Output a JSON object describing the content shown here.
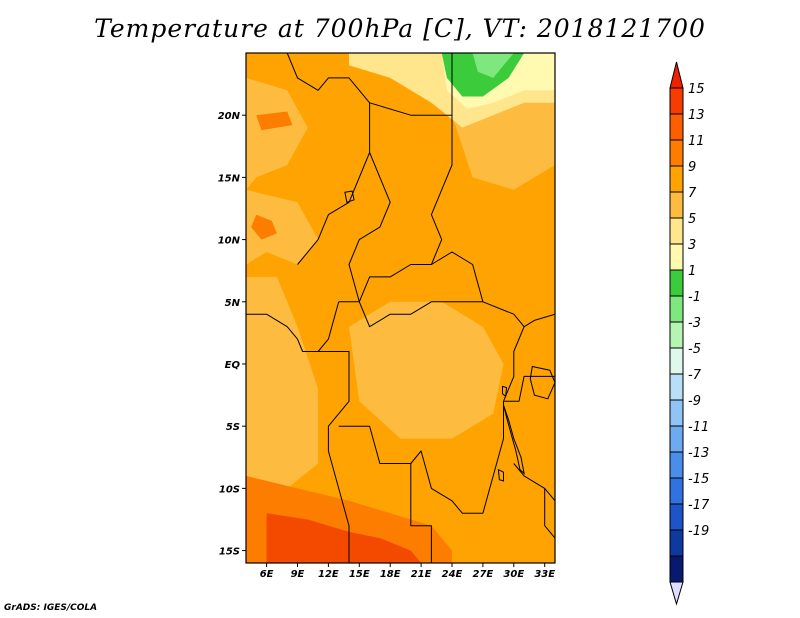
{
  "title": "Temperature at 700hPa [C], VT: 2018121700",
  "credit": "GrADS: IGES/COLA",
  "map": {
    "lon_range": [
      4,
      34
    ],
    "lat_range": [
      -16,
      25
    ],
    "lon_ticks": [
      {
        "value": 6,
        "label": "6E"
      },
      {
        "value": 9,
        "label": "9E"
      },
      {
        "value": 12,
        "label": "12E"
      },
      {
        "value": 15,
        "label": "15E"
      },
      {
        "value": 18,
        "label": "18E"
      },
      {
        "value": 21,
        "label": "21E"
      },
      {
        "value": 24,
        "label": "24E"
      },
      {
        "value": 27,
        "label": "27E"
      },
      {
        "value": 30,
        "label": "30E"
      },
      {
        "value": 33,
        "label": "33E"
      }
    ],
    "lat_ticks": [
      {
        "value": 20,
        "label": "20N"
      },
      {
        "value": 15,
        "label": "15N"
      },
      {
        "value": 10,
        "label": "10N"
      },
      {
        "value": 5,
        "label": "5N"
      },
      {
        "value": 0,
        "label": "EQ"
      },
      {
        "value": -5,
        "label": "5S"
      },
      {
        "value": -10,
        "label": "10S"
      },
      {
        "value": -15,
        "label": "15S"
      }
    ],
    "background_color": "#fea302",
    "regions": [
      {
        "name": "warm-patch-west",
        "level": 7,
        "color": "#fdbc3f",
        "polygon": [
          [
            4,
            23
          ],
          [
            8,
            22
          ],
          [
            10,
            19
          ],
          [
            8,
            16
          ],
          [
            5,
            15
          ],
          [
            4,
            14
          ]
        ]
      },
      {
        "name": "warm-patch-sahel",
        "level": 7,
        "color": "#fdbc3f",
        "polygon": [
          [
            4,
            14
          ],
          [
            9,
            13
          ],
          [
            11,
            10
          ],
          [
            9,
            8
          ],
          [
            6,
            9
          ],
          [
            4,
            8
          ]
        ]
      },
      {
        "name": "warm-patch-west-coast",
        "level": 7,
        "color": "#fdbc3f",
        "polygon": [
          [
            4,
            7
          ],
          [
            7,
            7
          ],
          [
            9,
            3
          ],
          [
            11,
            -2
          ],
          [
            11,
            -8
          ],
          [
            8,
            -10
          ],
          [
            4,
            -10
          ]
        ]
      },
      {
        "name": "warm-patch-congo",
        "level": 7,
        "color": "#fdbc3f",
        "polygon": [
          [
            14,
            3
          ],
          [
            18,
            5
          ],
          [
            23,
            5
          ],
          [
            27,
            3
          ],
          [
            29,
            0
          ],
          [
            28,
            -4
          ],
          [
            24,
            -6
          ],
          [
            19,
            -6
          ],
          [
            15,
            -3
          ]
        ]
      },
      {
        "name": "warm-patch-north",
        "level": 7,
        "color": "#fdbc3f",
        "polygon": [
          [
            24,
            20
          ],
          [
            28,
            22
          ],
          [
            34,
            21
          ],
          [
            34,
            16
          ],
          [
            30,
            14
          ],
          [
            26,
            15
          ]
        ]
      },
      {
        "name": "mild-band-north",
        "level": 5,
        "color": "#ffe58c",
        "polygon": [
          [
            14,
            25
          ],
          [
            34,
            25
          ],
          [
            34,
            21
          ],
          [
            31,
            21
          ],
          [
            28,
            20
          ],
          [
            25,
            19
          ],
          [
            22,
            21
          ],
          [
            18,
            23
          ],
          [
            14,
            24
          ]
        ]
      },
      {
        "name": "cool-band-north",
        "level": 3,
        "color": "#fffab0",
        "polygon": [
          [
            23,
            25
          ],
          [
            34,
            25
          ],
          [
            34,
            22
          ],
          [
            31,
            22
          ],
          [
            28,
            21
          ],
          [
            25.5,
            20.5
          ],
          [
            23.5,
            22
          ]
        ]
      },
      {
        "name": "cold-patch-northeast",
        "level": 1,
        "color": "#3ccb3b",
        "polygon": [
          [
            23,
            25
          ],
          [
            31,
            25
          ],
          [
            29.5,
            23
          ],
          [
            27,
            21.5
          ],
          [
            25,
            21.5
          ],
          [
            23.5,
            23
          ]
        ]
      },
      {
        "name": "colder-patch-northeast",
        "level": -1,
        "color": "#7ee87e",
        "polygon": [
          [
            26,
            25
          ],
          [
            30,
            25
          ],
          [
            28,
            23
          ],
          [
            26.5,
            23.5
          ]
        ]
      },
      {
        "name": "hot-band-south",
        "level": 11,
        "color": "#fd7d00",
        "polygon": [
          [
            4,
            -9
          ],
          [
            9,
            -10
          ],
          [
            14,
            -11
          ],
          [
            18,
            -12
          ],
          [
            22,
            -13
          ],
          [
            24,
            -15
          ],
          [
            24,
            -16
          ],
          [
            4,
            -16
          ]
        ]
      },
      {
        "name": "hotter-band-south",
        "level": 13,
        "color": "#f34a00",
        "polygon": [
          [
            6,
            -12
          ],
          [
            10,
            -12.5
          ],
          [
            14,
            -13.5
          ],
          [
            17,
            -14
          ],
          [
            20,
            -15
          ],
          [
            21,
            -16
          ],
          [
            6,
            -16
          ]
        ]
      },
      {
        "name": "hot-spot-west",
        "level": 11,
        "color": "#fd7d00",
        "polygon": [
          [
            5,
            12
          ],
          [
            6.5,
            11.5
          ],
          [
            7,
            10.5
          ],
          [
            5.5,
            10
          ],
          [
            4.5,
            11
          ]
        ]
      },
      {
        "name": "hot-spot-north",
        "level": 11,
        "color": "#fd7d00",
        "polygon": [
          [
            5,
            20
          ],
          [
            8,
            20.3
          ],
          [
            8.5,
            19.2
          ],
          [
            5.5,
            18.8
          ]
        ]
      }
    ],
    "boundaries": [
      [
        [
          8,
          25
        ],
        [
          9,
          23
        ],
        [
          11,
          22
        ],
        [
          12,
          23
        ],
        [
          14,
          23
        ],
        [
          16,
          21
        ],
        [
          16,
          17
        ],
        [
          15,
          15
        ],
        [
          14,
          13
        ],
        [
          12,
          12
        ],
        [
          11,
          10
        ],
        [
          9,
          8
        ]
      ],
      [
        [
          16,
          21
        ],
        [
          20,
          20
        ],
        [
          24,
          20
        ],
        [
          24,
          25
        ]
      ],
      [
        [
          24,
          20
        ],
        [
          24,
          16
        ],
        [
          23,
          14
        ],
        [
          22,
          12
        ],
        [
          23,
          10
        ],
        [
          22,
          8
        ],
        [
          20,
          8
        ],
        [
          18,
          7
        ],
        [
          16,
          7
        ],
        [
          15,
          5
        ],
        [
          13,
          5
        ]
      ],
      [
        [
          16,
          17
        ],
        [
          17,
          15
        ],
        [
          18,
          13
        ],
        [
          17,
          11
        ],
        [
          15,
          10
        ],
        [
          14,
          8
        ],
        [
          15,
          5
        ]
      ],
      [
        [
          22,
          8
        ],
        [
          24,
          9
        ],
        [
          26,
          8
        ],
        [
          27,
          5
        ],
        [
          30,
          4
        ],
        [
          31,
          3
        ],
        [
          32,
          3.5
        ],
        [
          34,
          4
        ]
      ],
      [
        [
          13,
          5
        ],
        [
          12,
          2
        ],
        [
          11,
          1
        ],
        [
          9.5,
          1
        ],
        [
          9,
          2
        ],
        [
          8,
          3
        ],
        [
          6,
          4
        ],
        [
          4,
          4
        ]
      ],
      [
        [
          15,
          5
        ],
        [
          16,
          3
        ],
        [
          18,
          4
        ],
        [
          20,
          4
        ],
        [
          22,
          5
        ],
        [
          24,
          5
        ],
        [
          27,
          5
        ]
      ],
      [
        [
          11,
          1
        ],
        [
          14,
          1
        ],
        [
          14,
          -3
        ],
        [
          12,
          -5
        ],
        [
          12,
          -7
        ],
        [
          13,
          -10
        ],
        [
          14,
          -13
        ],
        [
          14,
          -16
        ]
      ],
      [
        [
          13,
          -5
        ],
        [
          16,
          -5
        ],
        [
          17,
          -8
        ],
        [
          20,
          -8
        ],
        [
          21,
          -7
        ],
        [
          22,
          -10
        ],
        [
          24,
          -11
        ],
        [
          25,
          -12
        ],
        [
          27,
          -12
        ],
        [
          28,
          -9
        ],
        [
          29,
          -6
        ],
        [
          29,
          -3
        ],
        [
          30,
          -1
        ],
        [
          30,
          1
        ],
        [
          31,
          3
        ]
      ],
      [
        [
          29,
          -3
        ],
        [
          30.5,
          -3
        ],
        [
          31,
          -1
        ],
        [
          33,
          -1
        ],
        [
          34,
          -1
        ]
      ],
      [
        [
          20,
          -8
        ],
        [
          20,
          -13
        ],
        [
          22,
          -13
        ],
        [
          22,
          -16
        ]
      ],
      [
        [
          14,
          -16
        ],
        [
          24,
          -16
        ]
      ],
      [
        [
          30,
          -8
        ],
        [
          31,
          -9
        ],
        [
          33,
          -10
        ],
        [
          34,
          -11
        ]
      ],
      [
        [
          33,
          -10
        ],
        [
          33,
          -13
        ],
        [
          34,
          -14
        ]
      ]
    ],
    "lakes": [
      {
        "name": "lake-tanganyika",
        "polygon": [
          [
            29,
            -3.3
          ],
          [
            29.5,
            -4.5
          ],
          [
            30,
            -6
          ],
          [
            30.7,
            -7.5
          ],
          [
            31,
            -8.8
          ],
          [
            30.6,
            -8.5
          ],
          [
            30.2,
            -7
          ],
          [
            29.8,
            -5.8
          ],
          [
            29.3,
            -4.3
          ]
        ]
      },
      {
        "name": "lake-victoria",
        "polygon": [
          [
            31.8,
            -0.2
          ],
          [
            33.5,
            -0.5
          ],
          [
            34,
            -1.5
          ],
          [
            33.3,
            -2.8
          ],
          [
            32,
            -2.5
          ],
          [
            31.6,
            -1.2
          ]
        ]
      },
      {
        "name": "lake-chad",
        "polygon": [
          [
            13.6,
            13.8
          ],
          [
            14.3,
            13.9
          ],
          [
            14.5,
            13.2
          ],
          [
            13.8,
            13
          ]
        ]
      },
      {
        "name": "lake-kivu",
        "polygon": [
          [
            28.9,
            -1.8
          ],
          [
            29.3,
            -1.9
          ],
          [
            29.2,
            -2.6
          ],
          [
            28.9,
            -2.4
          ]
        ]
      },
      {
        "name": "lake-mweru",
        "polygon": [
          [
            28.5,
            -8.5
          ],
          [
            29,
            -8.7
          ],
          [
            29,
            -9.4
          ],
          [
            28.6,
            -9.3
          ]
        ]
      }
    ]
  },
  "colorbar": {
    "arrow_top_color": "#f02000",
    "arrow_bottom_color": "#ddddff",
    "bins": [
      {
        "label": "15",
        "color": "#f63c00"
      },
      {
        "label": "13",
        "color": "#fd5f00"
      },
      {
        "label": "11",
        "color": "#fd7d00"
      },
      {
        "label": "9",
        "color": "#fea302"
      },
      {
        "label": "7",
        "color": "#fdbc3f"
      },
      {
        "label": "5",
        "color": "#ffe58c"
      },
      {
        "label": "3",
        "color": "#fffab0"
      },
      {
        "label": "1",
        "color": "#3ccb3b"
      },
      {
        "label": "-1",
        "color": "#7ee87e"
      },
      {
        "label": "-3",
        "color": "#b4f5b4"
      },
      {
        "label": "-5",
        "color": "#def9ec"
      },
      {
        "label": "-7",
        "color": "#b8def8"
      },
      {
        "label": "-9",
        "color": "#8fc4f4"
      },
      {
        "label": "-11",
        "color": "#6eaaf0"
      },
      {
        "label": "-13",
        "color": "#4a8eea"
      },
      {
        "label": "-15",
        "color": "#3172e0"
      },
      {
        "label": "-17",
        "color": "#1d55c8"
      },
      {
        "label": "-19",
        "color": "#0e3aa0"
      },
      {
        "label": "",
        "color": "#081a70"
      }
    ]
  }
}
